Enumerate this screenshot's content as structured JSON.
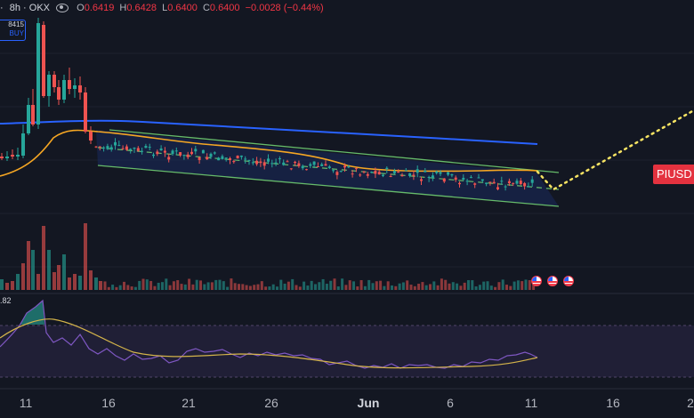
{
  "legend": {
    "symbol": "·",
    "interval": "8h",
    "exchange": "OKX",
    "open_label": "O",
    "open": "0.6419",
    "high_label": "H",
    "high": "0.6428",
    "low_label": "L",
    "low": "0.6400",
    "close_label": "C",
    "close": "0.6400",
    "change": "−0.0028 (−0.44%)"
  },
  "order_box": {
    "price": "8415",
    "side": "BUY"
  },
  "rsi_label": ".82",
  "ticker_tag": "PIUSD",
  "x_axis": [
    "11",
    "16",
    "21",
    "26",
    "Jun",
    "6",
    "11",
    "16",
    "2"
  ],
  "colors": {
    "up": "#26a69a",
    "down": "#ef5350",
    "ma_blue": "#2962ff",
    "ma_orange": "#f5a623",
    "channel": "#66bb6a",
    "projection": "#f7e463",
    "rsi": "#7e57c2"
  },
  "events": [
    "us-flag-icon",
    "us-flag-icon",
    "us-flag-icon"
  ]
}
